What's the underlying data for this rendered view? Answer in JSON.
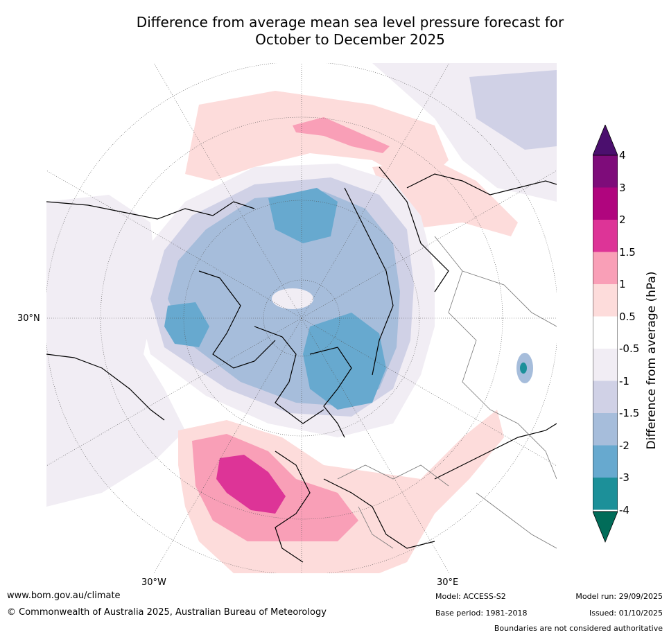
{
  "title": {
    "line1": "Difference from average mean sea level pressure forecast for",
    "line2": "October to December 2025"
  },
  "axis_labels": {
    "lat_30n": "30°N",
    "lon_30w": "30°W",
    "lon_30e": "30°E"
  },
  "colorbar": {
    "label": "Difference from average (hPa)",
    "ticks": [
      "4",
      "3",
      "2",
      "1.5",
      "1",
      "0.5",
      "-0.5",
      "-1",
      "-1.5",
      "-2",
      "-3",
      "-4"
    ],
    "colors": {
      "over": "#4b0f6e",
      "c_3_4": "#7e0c7a",
      "c_2_3": "#b0057e",
      "c_15_2": "#dd3497",
      "c_1_15": "#f99fb7",
      "c_05_1": "#fddcdb",
      "c_n05_05": "#ffffff",
      "c_n1_n05": "#f1edf4",
      "c_n15_n1": "#d0d1e6",
      "c_n2_n15": "#a6bddb",
      "c_n3_n2": "#67a9cf",
      "c_n4_n3": "#1c9099",
      "under": "#016c59"
    }
  },
  "footer": {
    "url": "www.bom.gov.au/climate",
    "copyright": "© Commonwealth of Australia 2025, Australian Bureau of Meteorology",
    "model": "Model: ACCESS-S2",
    "base_period": "Base period: 1981-2018",
    "model_run": "Model run: 29/09/2025",
    "issued": "Issued: 01/10/2025",
    "disclaimer": "Boundaries are not considered authoritative"
  }
}
